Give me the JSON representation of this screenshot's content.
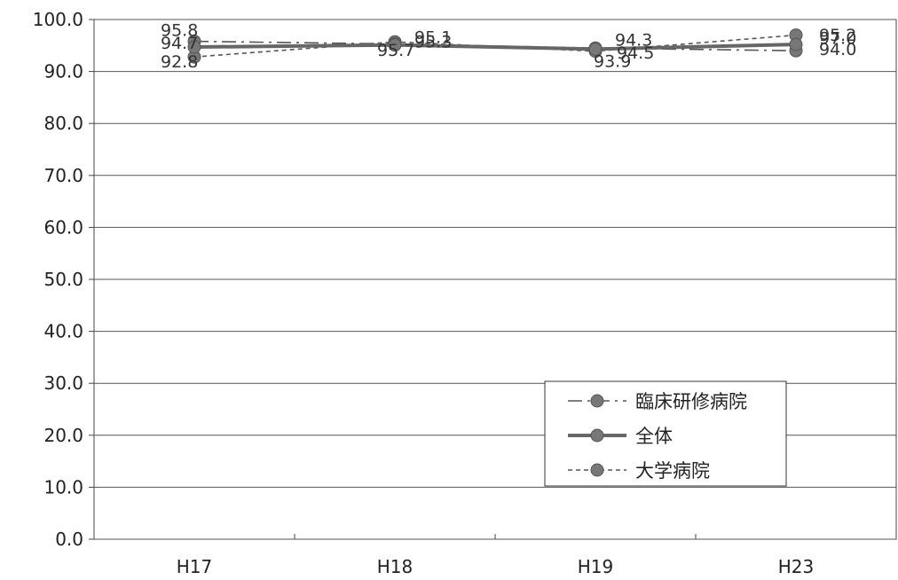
{
  "chart_data": {
    "type": "line",
    "categories": [
      "H17",
      "H18",
      "H19",
      "H23"
    ],
    "ylim": [
      0,
      100
    ],
    "y_ticks": [
      "0.0",
      "10.0",
      "20.0",
      "30.0",
      "40.0",
      "50.0",
      "60.0",
      "70.0",
      "80.0",
      "90.0",
      "100.0"
    ],
    "grid": true,
    "legend_position": "bottom-right",
    "series": [
      {
        "name": "臨床研修病院",
        "values": [
          95.8,
          95.3,
          94.5,
          94.0
        ],
        "labels": [
          "95.8",
          "95.3",
          "94.5",
          "94.0"
        ],
        "style": "dashdot",
        "color": "#555555"
      },
      {
        "name": "全体",
        "values": [
          94.7,
          95.1,
          94.3,
          95.2
        ],
        "labels": [
          "94.7",
          "95.1",
          "94.3",
          "95.2"
        ],
        "style": "solid",
        "color": "#666666"
      },
      {
        "name": "大学病院",
        "values": [
          92.8,
          95.7,
          93.9,
          97.0
        ],
        "labels": [
          "92.8",
          "95.7",
          "93.9",
          "97.0"
        ],
        "style": "dashed",
        "color": "#555555"
      }
    ]
  }
}
